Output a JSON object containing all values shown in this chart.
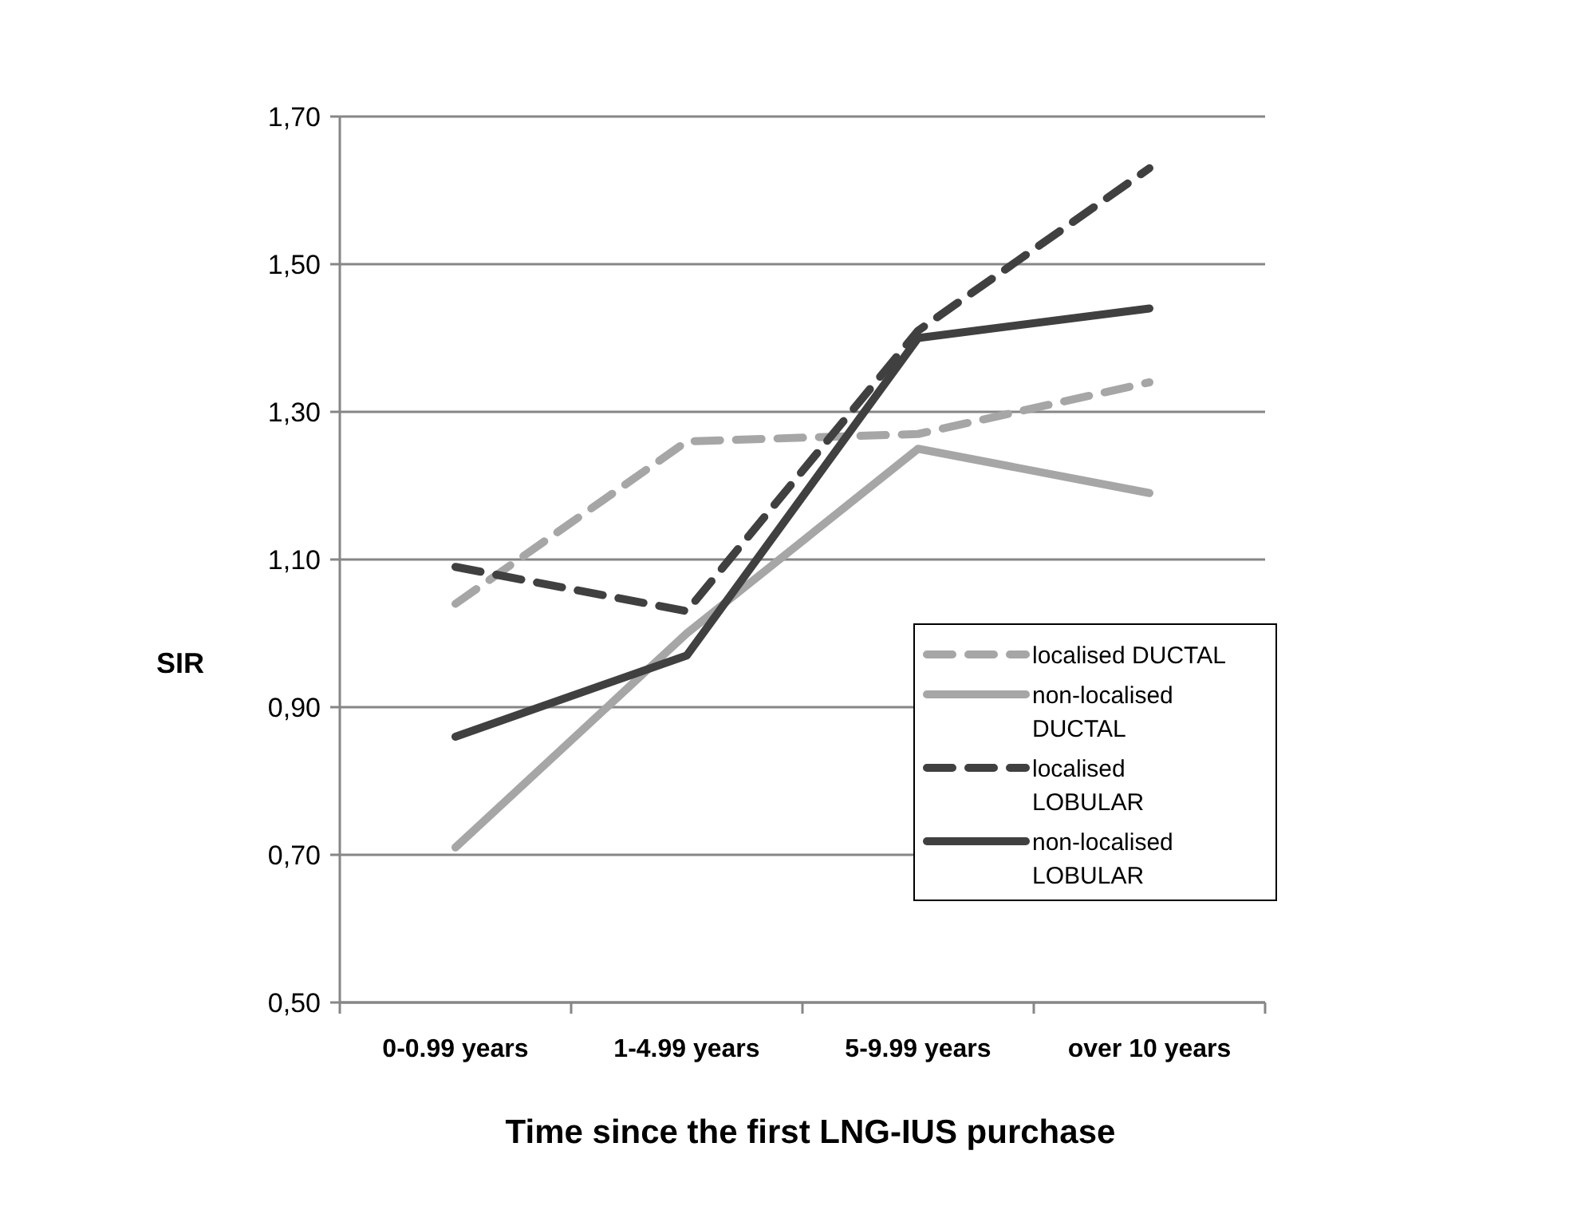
{
  "chart_data": {
    "type": "line",
    "xlabel": "Time since the first LNG-IUS purchase",
    "ylabel": "SIR",
    "categories": [
      "0-0.99 years",
      "1-4.99 years",
      "5-9.99 years",
      "over 10 years"
    ],
    "series": [
      {
        "name": "localised DUCTAL",
        "color": "#a6a6a6",
        "line_style": "dashed",
        "values": [
          1.04,
          1.26,
          1.27,
          1.34
        ]
      },
      {
        "name": "non-localised DUCTAL",
        "color": "#a6a6a6",
        "line_style": "solid",
        "values": [
          0.71,
          1.0,
          1.25,
          1.19
        ]
      },
      {
        "name": "localised LOBULAR",
        "color": "#404040",
        "line_style": "dashed",
        "values": [
          1.09,
          1.03,
          1.41,
          1.63
        ]
      },
      {
        "name": "non-localised LOBULAR",
        "color": "#404040",
        "line_style": "solid",
        "values": [
          0.86,
          0.97,
          1.4,
          1.44
        ]
      }
    ],
    "ylim": [
      0.5,
      1.7
    ],
    "yticks": [
      {
        "value": 0.5,
        "label": "0,50"
      },
      {
        "value": 0.7,
        "label": "0,70"
      },
      {
        "value": 0.9,
        "label": "0,90"
      },
      {
        "value": 1.1,
        "label": "1,10"
      },
      {
        "value": 1.3,
        "label": "1,30"
      },
      {
        "value": 1.5,
        "label": "1,50"
      },
      {
        "value": 1.7,
        "label": "1,70"
      }
    ],
    "grid": "y",
    "legend": "right",
    "marker": "none"
  }
}
